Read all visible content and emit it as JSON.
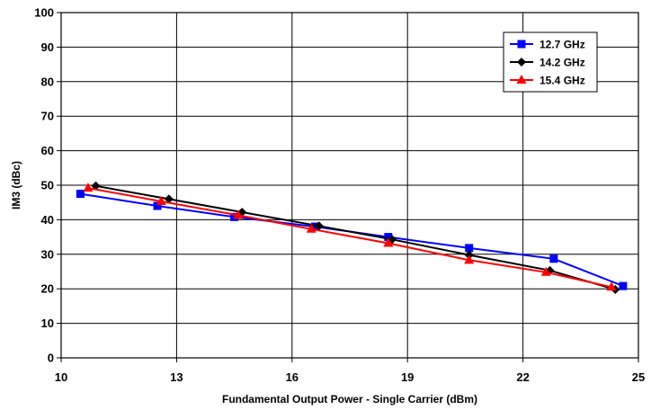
{
  "chart_data": {
    "type": "line",
    "title": "",
    "xlabel": "Fundamental Output Power - Single Carrier (dBm)",
    "ylabel": "IM3 (dBc)",
    "xlim": [
      10,
      25
    ],
    "ylim": [
      0,
      100
    ],
    "x_ticks": [
      10,
      13,
      16,
      19,
      22,
      25
    ],
    "y_ticks": [
      0,
      10,
      20,
      30,
      40,
      50,
      60,
      70,
      80,
      90,
      100
    ],
    "grid": true,
    "legend_position": "top-right",
    "series": [
      {
        "name": "12.7 GHz",
        "color": "#0000ff",
        "marker": "square",
        "points": [
          [
            10.5,
            47.5
          ],
          [
            12.5,
            44.0
          ],
          [
            14.5,
            40.8
          ],
          [
            16.6,
            38.0
          ],
          [
            18.5,
            35.0
          ],
          [
            20.6,
            31.8
          ],
          [
            22.8,
            28.7
          ],
          [
            24.6,
            20.8
          ]
        ]
      },
      {
        "name": "14.2 GHz",
        "color": "#000000",
        "marker": "diamond",
        "points": [
          [
            10.9,
            49.8
          ],
          [
            12.8,
            46.0
          ],
          [
            14.7,
            42.2
          ],
          [
            16.7,
            38.2
          ],
          [
            18.6,
            34.3
          ],
          [
            20.6,
            29.8
          ],
          [
            22.7,
            25.3
          ],
          [
            24.4,
            19.8
          ]
        ]
      },
      {
        "name": "15.4 GHz",
        "color": "#ff0000",
        "marker": "triangle",
        "points": [
          [
            10.7,
            49.2
          ],
          [
            12.6,
            45.3
          ],
          [
            14.6,
            41.3
          ],
          [
            16.5,
            37.3
          ],
          [
            18.5,
            33.2
          ],
          [
            20.6,
            28.3
          ],
          [
            22.6,
            24.8
          ],
          [
            24.3,
            20.5
          ]
        ]
      }
    ]
  }
}
